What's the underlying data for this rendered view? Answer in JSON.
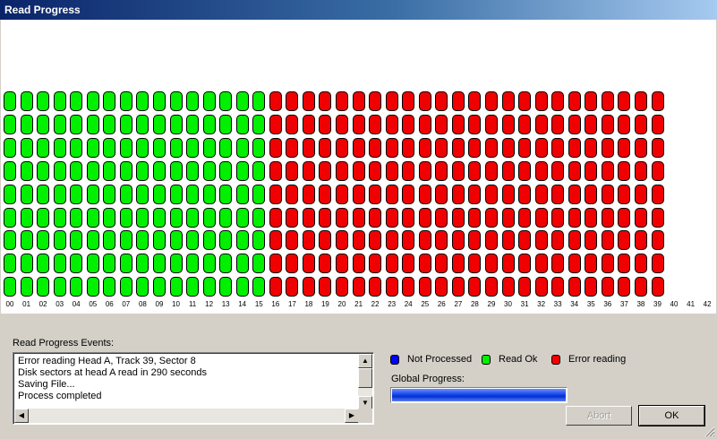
{
  "window": {
    "title": "Read Progress"
  },
  "grid": {
    "rows": 9,
    "track_labels": [
      "00",
      "01",
      "02",
      "03",
      "04",
      "05",
      "06",
      "07",
      "08",
      "09",
      "10",
      "11",
      "12",
      "13",
      "14",
      "15",
      "16",
      "17",
      "18",
      "19",
      "20",
      "21",
      "22",
      "23",
      "24",
      "25",
      "26",
      "27",
      "28",
      "29",
      "30",
      "31",
      "32",
      "33",
      "34",
      "35",
      "36",
      "37",
      "38",
      "39",
      "40",
      "41",
      "42"
    ],
    "read_ok_tracks": 16,
    "error_tracks": 24,
    "colors": {
      "ok": "#00f000",
      "error": "#f00000",
      "not_processed": "#0000ff"
    }
  },
  "events": {
    "label": "Read Progress Events:",
    "lines": [
      "Error reading Head A, Track 39, Sector 8",
      "Disk sectors at head A read in 290 seconds",
      "Saving File...",
      "Process completed"
    ]
  },
  "legend": {
    "not_processed": "Not Processed",
    "read_ok": "Read Ok",
    "error_reading": "Error reading"
  },
  "progress": {
    "label": "Global Progress:",
    "value_percent": 100
  },
  "buttons": {
    "abort": "Abort",
    "ok": "OK"
  }
}
